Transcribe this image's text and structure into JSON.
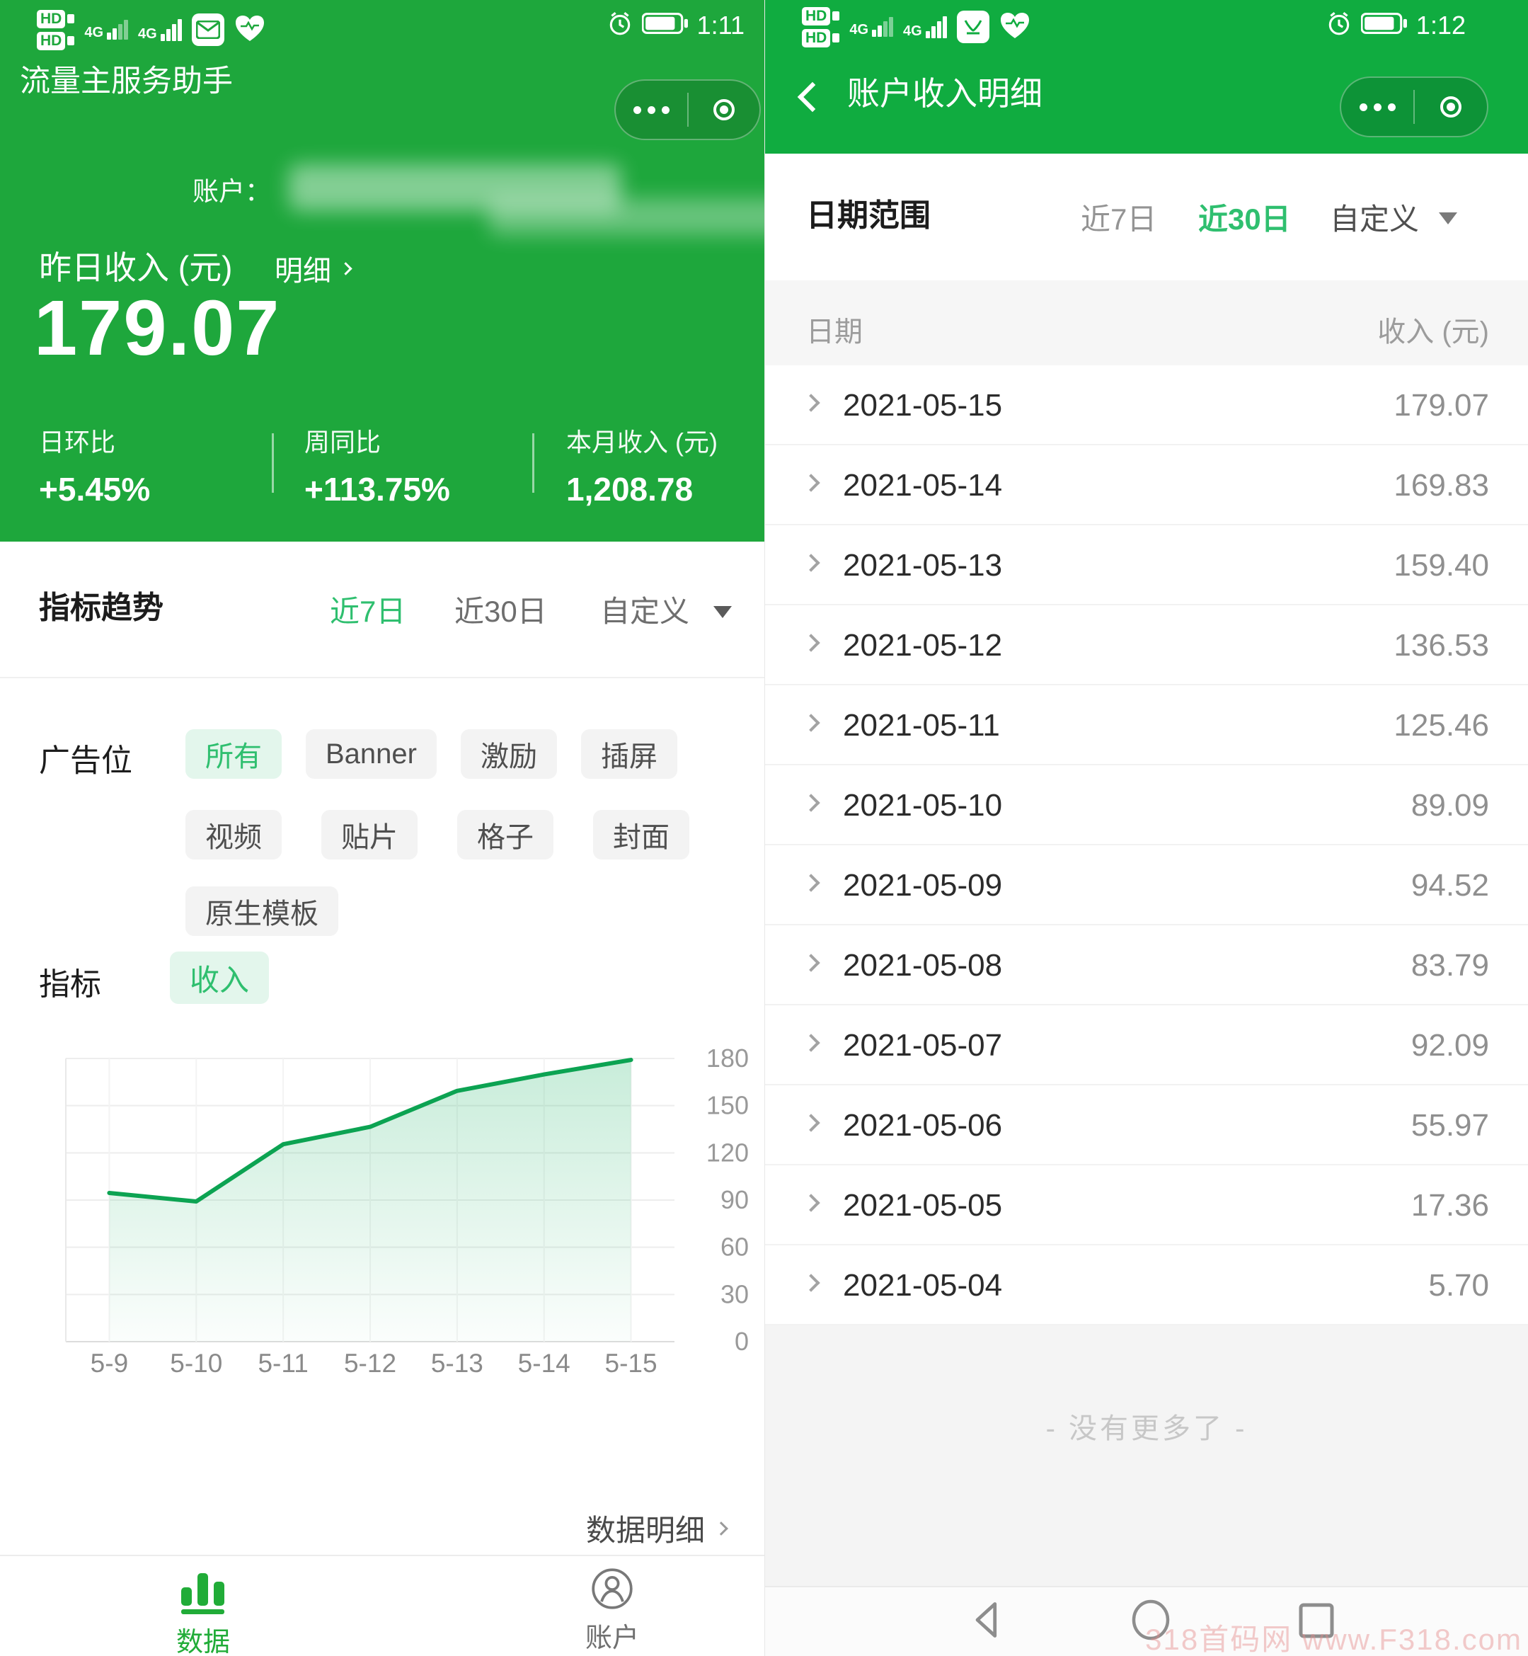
{
  "left_panel": {
    "status": {
      "time": "1:11",
      "network_badge": "HD",
      "network": "4G"
    },
    "nav": {
      "title": "流量主服务助手"
    },
    "hero": {
      "account_label": "账户：",
      "income_label": "昨日收入 (元)",
      "detail_link": "明细",
      "income_value": "179.07",
      "stats": [
        {
          "label": "日环比",
          "value": "+5.45%"
        },
        {
          "label": "周同比",
          "value": "+113.75%"
        },
        {
          "label": "本月收入 (元)",
          "value": "1,208.78"
        }
      ]
    },
    "trend": {
      "title": "指标趋势",
      "tabs": [
        {
          "label": "近7日",
          "active": true
        },
        {
          "label": "近30日",
          "active": false
        },
        {
          "label": "自定义",
          "active": false
        }
      ]
    },
    "ad_filter": {
      "label": "广告位",
      "row1": [
        "所有",
        "Banner",
        "激励",
        "插屏"
      ],
      "row2": [
        "视频",
        "贴片",
        "格子",
        "封面"
      ],
      "row3": [
        "原生模板"
      ]
    },
    "metric_filter": {
      "label": "指标",
      "selected": "收入"
    },
    "footer_link": "数据明细",
    "tabbar": [
      {
        "label": "数据",
        "active": true
      },
      {
        "label": "账户",
        "active": false
      }
    ]
  },
  "right_panel": {
    "status": {
      "time": "1:12",
      "network_badge": "HD",
      "network": "4G"
    },
    "nav": {
      "title": "账户收入明细"
    },
    "range": {
      "label": "日期范围",
      "tabs": [
        {
          "label": "近7日",
          "active": false
        },
        {
          "label": "近30日",
          "active": true
        },
        {
          "label": "自定义",
          "active": false
        }
      ]
    },
    "table": {
      "date_header": "日期",
      "income_header": "收入 (元)",
      "rows": [
        {
          "date": "2021-05-15",
          "value": "179.07"
        },
        {
          "date": "2021-05-14",
          "value": "169.83"
        },
        {
          "date": "2021-05-13",
          "value": "159.40"
        },
        {
          "date": "2021-05-12",
          "value": "136.53"
        },
        {
          "date": "2021-05-11",
          "value": "125.46"
        },
        {
          "date": "2021-05-10",
          "value": "89.09"
        },
        {
          "date": "2021-05-09",
          "value": "94.52"
        },
        {
          "date": "2021-05-08",
          "value": "83.79"
        },
        {
          "date": "2021-05-07",
          "value": "92.09"
        },
        {
          "date": "2021-05-06",
          "value": "55.97"
        },
        {
          "date": "2021-05-05",
          "value": "17.36"
        },
        {
          "date": "2021-05-04",
          "value": "5.70"
        }
      ]
    },
    "no_more": "- 没有更多了 -"
  },
  "chart_data": {
    "type": "area",
    "title": "",
    "categories": [
      "5-9",
      "5-10",
      "5-11",
      "5-12",
      "5-13",
      "5-14",
      "5-15"
    ],
    "values": [
      94.52,
      89.09,
      125.46,
      136.53,
      159.4,
      169.83,
      179.07
    ],
    "ylim": [
      0,
      180
    ],
    "ytick_step": 30,
    "ylabel_side": "right",
    "grid": true,
    "legend": "none",
    "line_color": "#0ca352",
    "area_color": "#2db870"
  },
  "watermark": "318首码网 www.F318.com",
  "colors": {
    "left_header_green": "#1EA73C",
    "right_header_green": "#10AC40",
    "accent_green": "#2fbf6f"
  }
}
